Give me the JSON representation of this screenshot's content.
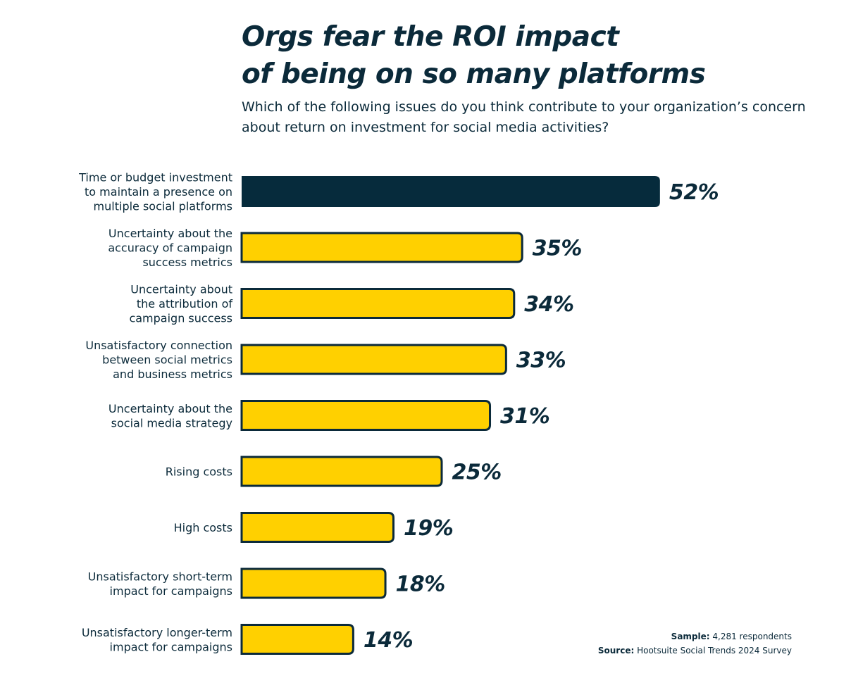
{
  "title_lines": [
    "Orgs fear the ROI impact",
    "of being on so many platforms"
  ],
  "subtitle": "Which of the following issues do you think contribute to your organization’s concern about return on investment for social media activities?",
  "colors": {
    "text": "#0b2a3a",
    "highlight_bar": "#062b3c",
    "bar": "#ffd000",
    "bar_stroke": "#0b2a3a"
  },
  "chart_data": {
    "type": "bar",
    "orientation": "horizontal",
    "categories": [
      "Time or budget investment to maintain a presence on multiple social platforms",
      "Uncertainty about the accuracy of campaign success metrics",
      "Uncertainty about the attribution of campaign success",
      "Unsatisfactory connection between social metrics and business metrics",
      "Uncertainty about the social media strategy",
      "Rising costs",
      "High costs",
      "Unsatisfactory short-term impact for campaigns",
      "Unsatisfactory longer-term impact for campaigns"
    ],
    "category_label_lines": [
      [
        "Time or budget investment",
        "to maintain a presence on",
        "multiple social platforms"
      ],
      [
        "Uncertainty about the",
        "accuracy of campaign",
        "success metrics"
      ],
      [
        "Uncertainty about",
        "the attribution of",
        "campaign success"
      ],
      [
        "Unsatisfactory connection",
        "between social metrics",
        "and business metrics"
      ],
      [
        "Uncertainty about the",
        "social media strategy"
      ],
      [
        "Rising costs"
      ],
      [
        "High costs"
      ],
      [
        "Unsatisfactory short-term",
        "impact for campaigns"
      ],
      [
        "Unsatisfactory longer-term",
        "impact for campaigns"
      ]
    ],
    "values": [
      52,
      35,
      34,
      33,
      31,
      25,
      19,
      18,
      14
    ],
    "value_labels": [
      "52%",
      "35%",
      "34%",
      "33%",
      "31%",
      "25%",
      "19%",
      "18%",
      "14%"
    ],
    "highlighted_index": 0,
    "unit": "%",
    "axis_visible": false,
    "grid": false
  },
  "footnotes": {
    "sample_label": "Sample:",
    "sample_value": "4,281 respondents",
    "source_label": "Source:",
    "source_value": "Hootsuite Social Trends 2024 Survey"
  }
}
